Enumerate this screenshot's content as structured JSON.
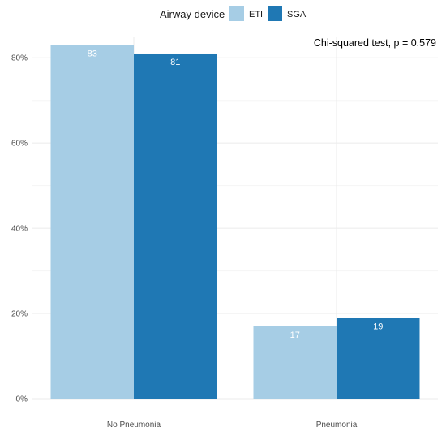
{
  "chart_data": {
    "type": "bar",
    "categories": [
      "No Pneumonia",
      "Pneumonia"
    ],
    "series": [
      {
        "name": "ETI",
        "values": [
          83,
          17
        ],
        "color": "#a6cde5"
      },
      {
        "name": "SGA",
        "values": [
          81,
          19
        ],
        "color": "#1f78b4"
      }
    ],
    "value_labels": [
      [
        "83",
        "17"
      ],
      [
        "81",
        "19"
      ]
    ],
    "ylim": [
      0,
      85
    ],
    "yticks": [
      0,
      20,
      40,
      60,
      80
    ],
    "ytick_labels": [
      "0%",
      "20%",
      "40%",
      "60%",
      "80%"
    ],
    "legend": {
      "title": "Airway device",
      "position": "top"
    },
    "annotation": "Chi-squared test, p = 0.579",
    "grid": true
  }
}
